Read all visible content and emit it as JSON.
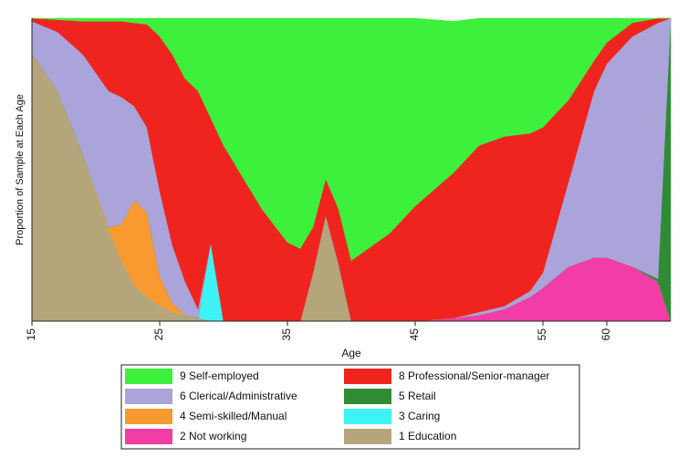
{
  "chart_data": {
    "type": "stacked_area",
    "xlabel": "Age",
    "ylabel": "Proportion of Sample at Each Age",
    "x": [
      15,
      17,
      19,
      21,
      22,
      23,
      24,
      25,
      26,
      27,
      28,
      29,
      30,
      33,
      35,
      36,
      37,
      38,
      39,
      40,
      43,
      45,
      48,
      50,
      52,
      54,
      55,
      57,
      59,
      60,
      62,
      64,
      65
    ],
    "xlim": [
      15,
      65
    ],
    "xticks": [
      15,
      25,
      35,
      45,
      55,
      60
    ],
    "ylim": [
      0,
      1
    ],
    "series": [
      {
        "name": "1 Education",
        "color": "#b5a57b",
        "values": [
          0.885,
          0.76,
          0.55,
          0.3,
          0.2,
          0.12,
          0.08,
          0.05,
          0.03,
          0.02,
          0.01,
          0,
          0,
          0,
          0,
          0,
          0.16,
          0.35,
          0.19,
          0,
          0,
          0,
          0,
          0,
          0,
          0,
          0,
          0,
          0,
          0,
          0,
          0,
          0
        ]
      },
      {
        "name": "2 Not working",
        "color": "#f23ca6",
        "values": [
          0,
          0,
          0,
          0,
          0,
          0,
          0,
          0,
          0,
          0,
          0,
          0,
          0,
          0,
          0,
          0,
          0,
          0,
          0,
          0,
          0,
          0,
          0.01,
          0.02,
          0.04,
          0.08,
          0.11,
          0.18,
          0.21,
          0.21,
          0.18,
          0.13,
          0
        ]
      },
      {
        "name": "3 Caring",
        "color": "#3ef2f4",
        "values": [
          0,
          0,
          0,
          0,
          0,
          0,
          0,
          0,
          0,
          0,
          0,
          0.26,
          0,
          0,
          0,
          0,
          0,
          0,
          0,
          0,
          0,
          0,
          0,
          0,
          0,
          0,
          0,
          0,
          0,
          0,
          0,
          0,
          0
        ]
      },
      {
        "name": "4 Semi-skilled/Manual",
        "color": "#f89a30",
        "values": [
          0,
          0,
          0,
          0.01,
          0.12,
          0.28,
          0.28,
          0.1,
          0.03,
          0,
          0,
          0,
          0,
          0,
          0,
          0,
          0,
          0,
          0,
          0,
          0,
          0,
          0,
          0,
          0,
          0,
          0,
          0,
          0,
          0,
          0,
          0,
          0
        ]
      },
      {
        "name": "5 Retail",
        "color": "#2f8c35",
        "values": [
          0,
          0,
          0,
          0,
          0,
          0,
          0,
          0,
          0,
          0,
          0,
          0,
          0,
          0,
          0,
          0,
          0,
          0,
          0,
          0,
          0,
          0,
          0,
          0,
          0,
          0,
          0,
          0,
          0,
          0,
          0,
          0.01,
          1
        ]
      },
      {
        "name": "6 Clerical/Administrative",
        "color": "#aaa4da",
        "values": [
          0.105,
          0.195,
          0.33,
          0.45,
          0.42,
          0.31,
          0.28,
          0.28,
          0.19,
          0.11,
          0.03,
          0,
          0,
          0,
          0,
          0,
          0,
          0,
          0,
          0,
          0,
          0,
          0,
          0.01,
          0.01,
          0.02,
          0.05,
          0.28,
          0.55,
          0.64,
          0.76,
          0.845,
          0
        ]
      },
      {
        "name": "8 Professional/Senior-manager",
        "color": "#f0241f",
        "values": [
          0.01,
          0.04,
          0.11,
          0.23,
          0.25,
          0.275,
          0.34,
          0.51,
          0.63,
          0.67,
          0.72,
          0.41,
          0.58,
          0.37,
          0.26,
          0.24,
          0.15,
          0.12,
          0.18,
          0.2,
          0.29,
          0.38,
          0.48,
          0.55,
          0.56,
          0.52,
          0.48,
          0.27,
          0.1,
          0.07,
          0.045,
          0.015,
          0
        ]
      },
      {
        "name": "9 Self-employed",
        "color": "#3cf03c",
        "values": [
          0,
          0.005,
          0.01,
          0.01,
          0.01,
          0.015,
          0.02,
          0.06,
          0.12,
          0.2,
          0.24,
          0.33,
          0.42,
          0.63,
          0.74,
          0.76,
          0.69,
          0.53,
          0.63,
          0.8,
          0.71,
          0.62,
          0.5,
          0.42,
          0.39,
          0.38,
          0.36,
          0.27,
          0.14,
          0.08,
          0.015,
          0,
          0
        ]
      }
    ]
  }
}
